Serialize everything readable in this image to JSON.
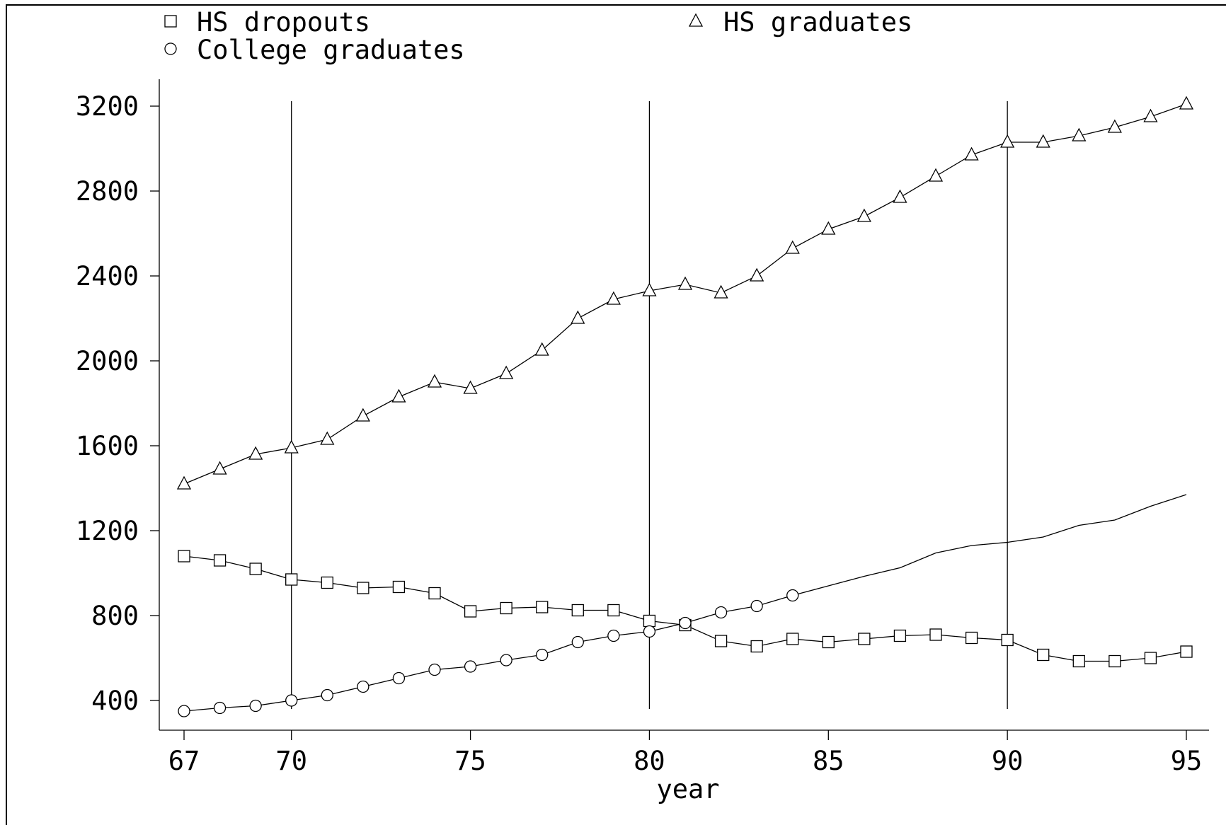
{
  "chart_data": {
    "type": "line",
    "title": "",
    "xlabel": "year",
    "ylabel": "",
    "x": [
      67,
      68,
      69,
      70,
      71,
      72,
      73,
      74,
      75,
      76,
      77,
      78,
      79,
      80,
      81,
      82,
      83,
      84,
      85,
      86,
      87,
      88,
      89,
      90,
      91,
      92,
      93,
      94,
      95
    ],
    "xlim": [
      67,
      95
    ],
    "ylim": [
      350,
      3200
    ],
    "x_ticks": [
      "67",
      "70",
      "75",
      "80",
      "85",
      "90",
      "95"
    ],
    "y_ticks": [
      "400",
      "800",
      "1200",
      "1600",
      "2000",
      "2400",
      "2800",
      "3200"
    ],
    "vertical_lines": [
      70,
      80,
      90
    ],
    "grid": false,
    "legend_position": "top",
    "series": [
      {
        "name": "HS dropouts",
        "marker": "square",
        "values": [
          1080,
          1060,
          1020,
          970,
          955,
          930,
          935,
          905,
          820,
          835,
          840,
          825,
          825,
          775,
          755,
          680,
          655,
          690,
          675,
          690,
          705,
          710,
          695,
          685,
          615,
          585,
          585,
          600,
          630
        ]
      },
      {
        "name": "HS graduates",
        "marker": "triangle",
        "values": [
          1420,
          1490,
          1560,
          1590,
          1630,
          1740,
          1830,
          1900,
          1870,
          1940,
          2050,
          2200,
          2290,
          2330,
          2360,
          2320,
          2400,
          2530,
          2620,
          2680,
          2770,
          2870,
          2970,
          3030,
          3030,
          3060,
          3100,
          3150,
          3210
        ]
      },
      {
        "name": "College graduates",
        "marker": "circle",
        "markers_through_index": 17,
        "values": [
          350,
          365,
          375,
          400,
          425,
          465,
          505,
          545,
          560,
          590,
          615,
          675,
          705,
          725,
          765,
          815,
          845,
          895,
          940,
          985,
          1025,
          1095,
          1130,
          1145,
          1170,
          1225,
          1250,
          1315,
          1370
        ]
      }
    ]
  }
}
